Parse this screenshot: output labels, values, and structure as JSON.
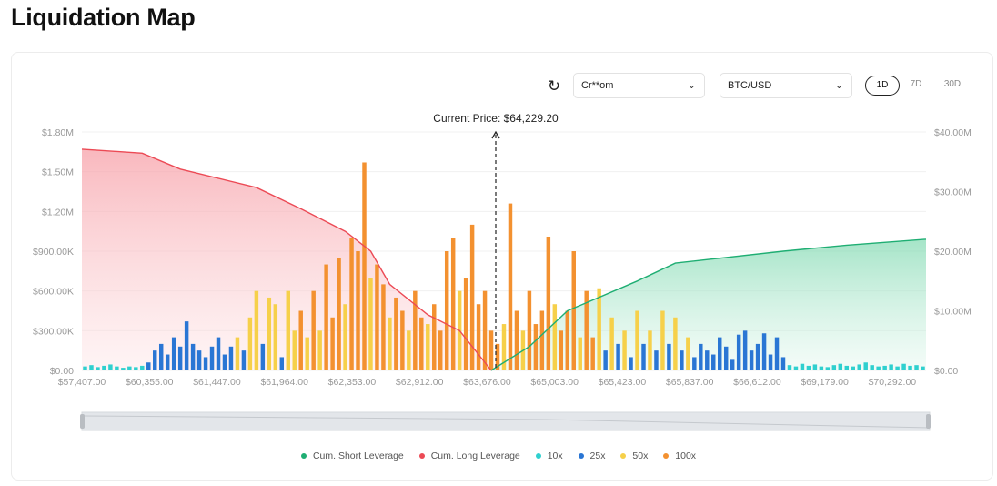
{
  "page_title": "Liquidation Map",
  "controls": {
    "exchange": "Cr**om",
    "pair": "BTC/USD",
    "timeframes": [
      "1D",
      "7D",
      "30D"
    ],
    "active_timeframe": "1D",
    "refresh_icon": "refresh-icon"
  },
  "colors": {
    "short": "#1fae73",
    "long": "#ec4a55",
    "10x": "#2fd0cf",
    "25x": "#2a76d4",
    "50x": "#f6d04a",
    "100x": "#f39130"
  },
  "chart_data": {
    "type": "bar",
    "annotation": "Current Price: $64,229.20",
    "left_ticks": [
      "$0.00",
      "$300.00K",
      "$600.00K",
      "$900.00K",
      "$1.20M",
      "$1.50M",
      "$1.80M"
    ],
    "right_ticks": [
      "$0.00",
      "$10.00M",
      "$20.00M",
      "$30.00M",
      "$40.00M"
    ],
    "ylim_left": [
      0,
      1800000
    ],
    "ylim_right": [
      0,
      40000000
    ],
    "x_ticks": [
      "$57,407.00",
      "$60,355.00",
      "$61,447.00",
      "$61,964.00",
      "$62,353.00",
      "$62,912.00",
      "$63,676.00",
      "$65,003.00",
      "$65,423.00",
      "$65,837.00",
      "$66,612.00",
      "$69,179.00",
      "$70,292.00"
    ],
    "current_price_index": 64,
    "legend": [
      "Cum. Short Leverage",
      "Cum. Long Leverage",
      "10x",
      "25x",
      "50x",
      "100x"
    ],
    "bars_leverage": [
      "10x",
      "10x",
      "10x",
      "10x",
      "10x",
      "10x",
      "10x",
      "10x",
      "10x",
      "10x",
      "25x",
      "25x",
      "25x",
      "25x",
      "25x",
      "25x",
      "25x",
      "25x",
      "25x",
      "25x",
      "25x",
      "25x",
      "25x",
      "25x",
      "50x",
      "25x",
      "50x",
      "50x",
      "25x",
      "50x",
      "50x",
      "25x",
      "50x",
      "50x",
      "100x",
      "50x",
      "100x",
      "50x",
      "100x",
      "100x",
      "100x",
      "50x",
      "100x",
      "100x",
      "100x",
      "50x",
      "100x",
      "100x",
      "50x",
      "100x",
      "100x",
      "50x",
      "100x",
      "100x",
      "50x",
      "100x",
      "100x",
      "100x",
      "100x",
      "50x",
      "100x",
      "100x",
      "100x",
      "100x",
      "100x",
      "100x",
      "50x",
      "100x",
      "100x",
      "50x",
      "100x",
      "100x",
      "100x",
      "100x",
      "50x",
      "100x",
      "100x",
      "100x",
      "50x",
      "100x",
      "100x",
      "50x",
      "25x",
      "50x",
      "25x",
      "50x",
      "25x",
      "50x",
      "25x",
      "50x",
      "25x",
      "50x",
      "25x",
      "50x",
      "25x",
      "50x",
      "25x",
      "25x",
      "25x",
      "25x",
      "25x",
      "25x",
      "25x",
      "25x",
      "25x",
      "25x",
      "25x",
      "25x",
      "25x",
      "25x",
      "25x",
      "10x",
      "10x",
      "10x",
      "10x",
      "10x",
      "10x",
      "10x",
      "10x",
      "10x",
      "10x",
      "10x",
      "10x",
      "10x",
      "10x",
      "10x",
      "10x",
      "10x",
      "10x",
      "10x",
      "10x",
      "10x",
      "10x"
    ],
    "bars_values_k": [
      30,
      40,
      25,
      35,
      45,
      30,
      20,
      30,
      25,
      35,
      60,
      150,
      200,
      120,
      250,
      180,
      370,
      200,
      150,
      100,
      180,
      250,
      120,
      180,
      250,
      150,
      400,
      600,
      200,
      550,
      500,
      100,
      600,
      300,
      450,
      250,
      600,
      300,
      800,
      400,
      850,
      500,
      1000,
      900,
      1570,
      700,
      800,
      650,
      400,
      550,
      450,
      300,
      600,
      400,
      350,
      500,
      300,
      900,
      1000,
      600,
      700,
      1100,
      500,
      600,
      300,
      200,
      350,
      1260,
      450,
      300,
      600,
      350,
      450,
      1010,
      500,
      300,
      450,
      900,
      250,
      600,
      250,
      620,
      150,
      400,
      200,
      300,
      100,
      450,
      200,
      300,
      150,
      450,
      200,
      400,
      150,
      250,
      100,
      200,
      150,
      120,
      250,
      180,
      80,
      270,
      300,
      150,
      200,
      280,
      120,
      250,
      100,
      40,
      30,
      50,
      35,
      45,
      30,
      25,
      40,
      50,
      35,
      30,
      45,
      60,
      40,
      30,
      35,
      45,
      30,
      50,
      35,
      40,
      30
    ],
    "cum_long_m": [
      [
        0,
        1.67
      ],
      [
        9,
        1.64
      ],
      [
        15,
        1.52
      ],
      [
        27,
        1.38
      ],
      [
        34,
        1.22
      ],
      [
        41,
        1.05
      ],
      [
        45,
        0.9
      ],
      [
        48,
        0.65
      ],
      [
        54,
        0.42
      ],
      [
        59,
        0.3
      ],
      [
        64,
        0
      ]
    ],
    "cum_short_m": [
      [
        64,
        0
      ],
      [
        70,
        4
      ],
      [
        76,
        10
      ],
      [
        87,
        15
      ],
      [
        93,
        18
      ],
      [
        110,
        20
      ],
      [
        120,
        21
      ],
      [
        132,
        22
      ]
    ]
  }
}
